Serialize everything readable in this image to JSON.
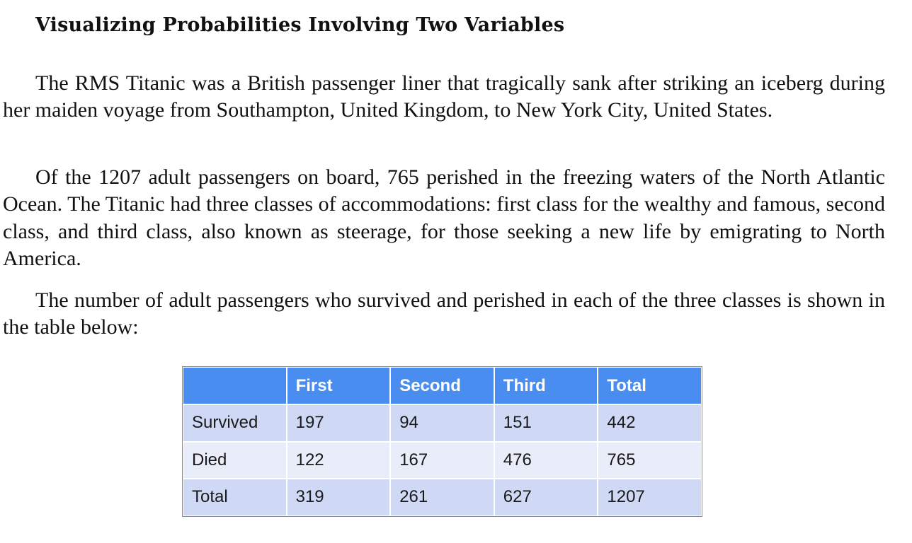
{
  "title": "Visualizing Probabilities Involving Two Variables",
  "paragraphs": [
    "The RMS Titanic was a British passenger liner that tragically sank after striking an iceberg during her maiden voyage from Southampton, United Kingdom, to New York City, United States.",
    "Of the 1207 adult passengers on board, 765 perished in the freezing waters of the North Atlantic Ocean. The Titanic had three classes of accommodations: first class for the wealthy and famous, second class, and third class, also known as steerage, for those seeking a new life by emigrating to North America.",
    "The number of adult passengers who survived and perished in each of the three classes is shown in the table below:"
  ],
  "table": {
    "headers": [
      "",
      "First",
      "Second",
      "Third",
      "Total"
    ],
    "rows": [
      [
        "Survived",
        "197",
        "94",
        "151",
        "442"
      ],
      [
        "Died",
        "122",
        "167",
        "476",
        "765"
      ],
      [
        "Total",
        "319",
        "261",
        "627",
        "1207"
      ]
    ]
  },
  "colors": {
    "header_bg": "#4a8df0",
    "row_odd_bg": "#cfd9f6",
    "row_even_bg": "#e8edf9"
  }
}
